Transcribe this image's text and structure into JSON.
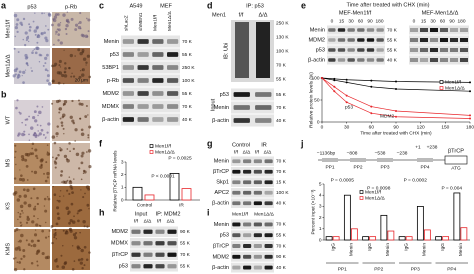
{
  "a": {
    "label": "a",
    "cols": [
      "p53",
      "p-Rb"
    ],
    "rows": [
      "Men1f/f",
      "Men1Δ/Δ"
    ],
    "scale": "20 μm"
  },
  "b": {
    "label": "b",
    "rows": [
      "WT",
      "MS",
      "KS",
      "KMS"
    ]
  },
  "c": {
    "label": "c",
    "groups": [
      "A549",
      "MEF"
    ],
    "lanes": [
      "shLacZ",
      "shMEN1",
      "Men1f/f",
      "Men1Δ/Δ"
    ],
    "rows": [
      "Menin",
      "p53",
      "53BP1",
      "p-Rb",
      "MDM2",
      "MDMX",
      "β-actin"
    ],
    "kda": [
      "70 K",
      "55 K",
      "250 K",
      "100 K",
      "55 K",
      "70 K",
      "40 K"
    ]
  },
  "d": {
    "label": "d",
    "ip": "IP: p53",
    "gene": "Men1",
    "lanes": [
      "f/f",
      "Δ/Δ"
    ],
    "ib": "IB: Ubi",
    "input": "Input",
    "rows": [
      "p53",
      "Menin",
      "β-actin"
    ],
    "kda_top": [
      "250 K",
      "130 K",
      "100 K",
      "70 K",
      "55 K"
    ],
    "kda": [
      "55 K",
      "70 K",
      "40 K"
    ]
  },
  "e": {
    "label": "e",
    "title": "Time after treated with CHX (min)",
    "groups": [
      "MEF-Men1f/f",
      "MEF-Men1Δ/Δ"
    ],
    "times": [
      "0",
      "15",
      "30",
      "60",
      "90",
      "180"
    ],
    "rows": [
      "Menin",
      "MDM2",
      "p53",
      "β-actin"
    ],
    "kda": [
      "70 K",
      "55 K",
      "55 K",
      "40 K"
    ],
    "chart": {
      "type": "line",
      "y_label": "Relative protein levels (%)",
      "x_label": "Time after treated with CHX (min)",
      "x": [
        0,
        15,
        30,
        60,
        90,
        180
      ],
      "xlim": [
        0,
        180
      ],
      "xticks": [
        0,
        30,
        60,
        90,
        120,
        150,
        180
      ],
      "ylim": [
        0,
        100
      ],
      "yticks": [
        0,
        50,
        100
      ],
      "legend": [
        {
          "name": "Men1f/f",
          "color": "#000000"
        },
        {
          "name": "Men1Δ/Δ",
          "color": "#e8262b"
        }
      ],
      "series": [
        {
          "color": "#000000",
          "values": [
            100,
            98,
            96,
            94,
            92,
            90
          ]
        },
        {
          "color": "#e8262b",
          "values": [
            100,
            70,
            45,
            20,
            12,
            8
          ]
        },
        {
          "color": "#000000",
          "values": [
            100,
            95,
            90,
            80,
            75,
            70
          ]
        },
        {
          "color": "#e8262b",
          "values": [
            100,
            80,
            60,
            35,
            25,
            15
          ]
        }
      ],
      "annotations": [
        "p53",
        "MDM2"
      ]
    }
  },
  "f": {
    "label": "f",
    "chart": {
      "type": "bar",
      "y_label": "Relative βTrCP mRNA levels",
      "categories": [
        "Control",
        "IR"
      ],
      "series": [
        {
          "name": "Men1f/f",
          "color": "#000000",
          "values": [
            1,
            2.1
          ]
        },
        {
          "name": "Men1Δ/Δ",
          "color": "#e8262b",
          "values": [
            0.4,
            0.9
          ]
        }
      ],
      "ylim": [
        0,
        3
      ],
      "yticks": [
        0,
        1,
        2,
        3
      ],
      "annotations": [
        "P = 0.0025",
        "P < 0.0001"
      ]
    }
  },
  "g": {
    "label": "g",
    "conditions": [
      "Control",
      "IR"
    ],
    "lanes": [
      "f/f",
      "Δ/Δ"
    ],
    "rows": [
      "Menin",
      "βTrCP",
      "Skp1",
      "APC2",
      "β-actin"
    ],
    "kda": [
      "70 K",
      "70 K",
      "15 K",
      "100 K",
      "40 K"
    ]
  },
  "h": {
    "label": "h",
    "groups": [
      "Input",
      "IP: MDM2"
    ],
    "lanes": [
      "f/f",
      "Δ/Δ"
    ],
    "rows": [
      "MDM2",
      "MDMX",
      "βTrCP",
      "p53"
    ],
    "kda": [
      "90 K",
      "55 K",
      "70 K",
      "55 K"
    ]
  },
  "i": {
    "label": "i",
    "groups": [
      "Men1f/f",
      "Men1Δ/Δ"
    ],
    "rows": [
      "Menin",
      "p53",
      "βTrCP",
      "MDM2",
      "β-actin"
    ],
    "kda": [
      "70 K",
      "55 K",
      "70 K",
      "90 K",
      "40 K"
    ]
  },
  "j": {
    "label": "j",
    "diagram": {
      "positions": [
        "−1136bp",
        "−808",
        "−538",
        "−238",
        "+1",
        "+238"
      ],
      "gene": "βTrCP",
      "start": "ATG",
      "regions": [
        "PP1",
        "PP2",
        "PP3",
        "PP4"
      ]
    },
    "chart": {
      "type": "bar",
      "y_label": "Percent input (×10⁻³)",
      "categories": [
        "IgG",
        "Menin",
        "IgG",
        "Menin",
        "IgG",
        "Menin",
        "IgG",
        "Menin"
      ],
      "legend": [
        {
          "name": "Men1f/f",
          "color": "#000000"
        },
        {
          "name": "Men1Δ/Δ",
          "color": "#e8262b"
        }
      ],
      "series": [
        {
          "color": "#000000",
          "values": [
            0.3,
            4.0,
            0.3,
            2.2,
            0.3,
            3.0,
            0.3,
            4.2
          ]
        },
        {
          "color": "#e8262b",
          "values": [
            0.3,
            1.0,
            0.3,
            0.8,
            0.3,
            0.9,
            0.3,
            1.1
          ]
        }
      ],
      "ylim": [
        0,
        5
      ],
      "yticks": [
        0,
        1,
        2,
        3,
        4,
        5
      ],
      "annotations": [
        "P = 0.0005",
        "P = 0.0098",
        "P = 0.0002",
        "P = 0.004"
      ]
    }
  }
}
